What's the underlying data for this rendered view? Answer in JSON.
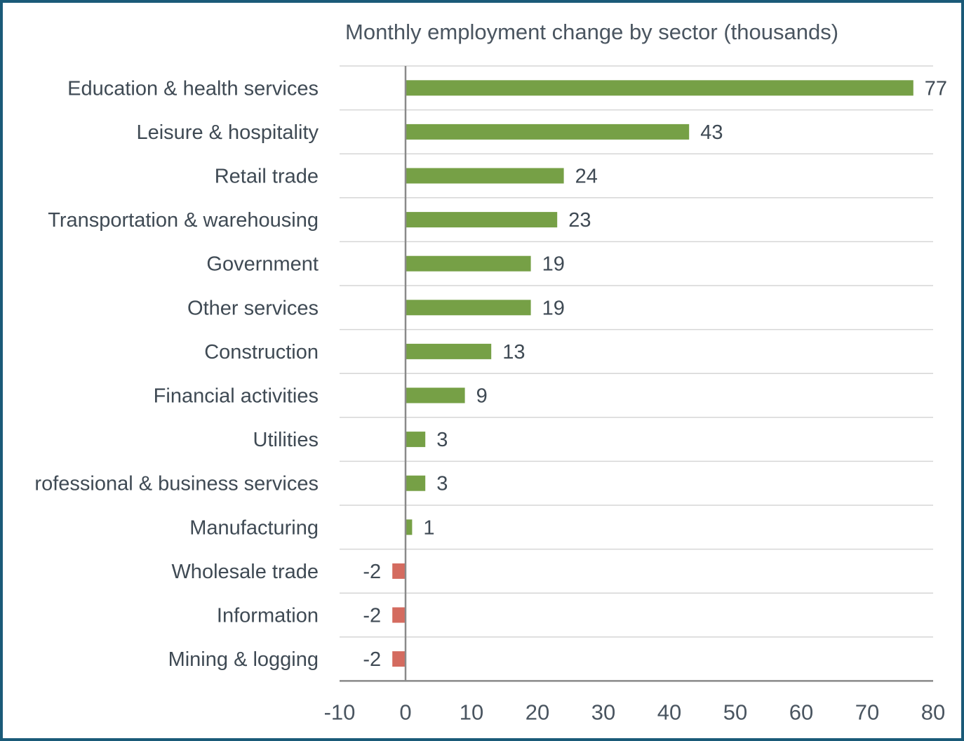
{
  "chart_data": {
    "type": "bar",
    "orientation": "horizontal",
    "title": "Monthly employment change by sector (thousands)",
    "xlabel": "",
    "ylabel": "",
    "categories": [
      "Education & health services",
      "Leisure & hospitality",
      "Retail trade",
      "Transportation & warehousing",
      "Government",
      "Other services",
      "Construction",
      "Financial activities",
      "Utilities",
      "rofessional & business services",
      "Manufacturing",
      "Wholesale trade",
      "Information",
      "Mining & logging"
    ],
    "values": [
      77,
      43,
      24,
      23,
      19,
      19,
      13,
      9,
      3,
      3,
      1,
      -2,
      -2,
      -2
    ],
    "xlim": [
      -10,
      80
    ],
    "xticks": [
      -10,
      0,
      10,
      20,
      30,
      40,
      50,
      60,
      70,
      80
    ],
    "grid": true,
    "data_labels": true,
    "colors": {
      "positive": "#76a046",
      "negative": "#d46b5f",
      "frame": "#1a5a78",
      "gridline": "#d6d6d6",
      "axis": "#8a8a8a"
    }
  }
}
